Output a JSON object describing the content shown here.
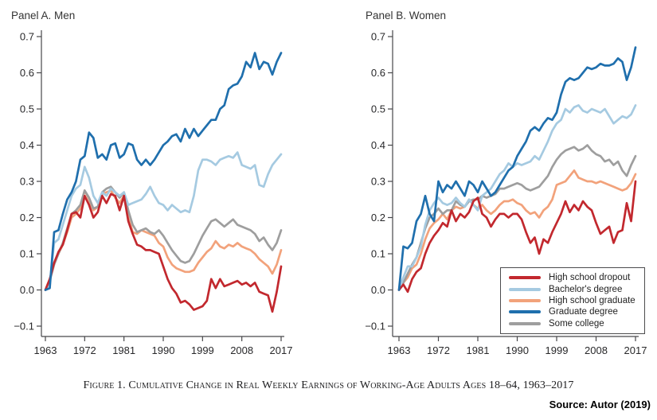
{
  "page": {
    "caption": "Figure 1. Cumulative Change in Real Weekly Earnings of Working-Age Adults Ages 18–64, 1963–2017",
    "source": "Source: Autor (2019)"
  },
  "colors": {
    "hs_dropout": "#c2282e",
    "bachelors": "#a5cae1",
    "hs_graduate": "#f2a27b",
    "graduate": "#1f6fad",
    "some_college": "#9e9e9e",
    "axis": "#47474a",
    "text": "#28282a"
  },
  "legend": {
    "entries": [
      {
        "label": "High school dropout",
        "series": "hs_dropout"
      },
      {
        "label": "Bachelor's degree",
        "series": "bachelors"
      },
      {
        "label": "High school graduate",
        "series": "hs_graduate"
      },
      {
        "label": "Graduate degree",
        "series": "graduate"
      },
      {
        "label": "Some college",
        "series": "some_college"
      }
    ]
  },
  "chart_data": [
    {
      "type": "line",
      "title": "Panel A. Men",
      "xlabel": "",
      "ylabel": "",
      "grid": false,
      "ylim": [
        -0.1,
        0.7
      ],
      "x_ticks": [
        1963,
        1972,
        1981,
        1990,
        1999,
        2008,
        2017
      ],
      "y_ticks": [
        -0.1,
        0.0,
        0.1,
        0.2,
        0.3,
        0.4,
        0.5,
        0.6,
        0.7
      ],
      "x": [
        1963,
        1964,
        1965,
        1966,
        1967,
        1968,
        1969,
        1970,
        1971,
        1972,
        1973,
        1974,
        1975,
        1976,
        1977,
        1978,
        1979,
        1980,
        1981,
        1982,
        1983,
        1984,
        1985,
        1986,
        1987,
        1988,
        1989,
        1990,
        1991,
        1992,
        1993,
        1994,
        1995,
        1996,
        1997,
        1998,
        1999,
        2000,
        2001,
        2002,
        2003,
        2004,
        2005,
        2006,
        2007,
        2008,
        2009,
        2010,
        2011,
        2012,
        2013,
        2014,
        2015,
        2016,
        2017
      ],
      "series": [
        {
          "key": "hs_dropout",
          "name": "High school dropout",
          "values": [
            0.0,
            0.03,
            0.075,
            0.105,
            0.125,
            0.165,
            0.21,
            0.215,
            0.2,
            0.26,
            0.235,
            0.2,
            0.215,
            0.26,
            0.24,
            0.265,
            0.26,
            0.22,
            0.26,
            0.19,
            0.155,
            0.125,
            0.12,
            0.11,
            0.11,
            0.105,
            0.1,
            0.065,
            0.03,
            0.005,
            -0.01,
            -0.035,
            -0.03,
            -0.04,
            -0.055,
            -0.05,
            -0.045,
            -0.03,
            0.03,
            0.005,
            0.03,
            0.01,
            0.015,
            0.02,
            0.025,
            0.015,
            0.02,
            0.01,
            0.02,
            -0.005,
            -0.01,
            -0.015,
            -0.06,
            -0.005,
            0.065
          ]
        },
        {
          "key": "bachelors",
          "name": "Bachelor's degree",
          "values": [
            0.0,
            0.02,
            0.13,
            0.14,
            0.18,
            0.22,
            0.26,
            0.28,
            0.29,
            0.34,
            0.31,
            0.26,
            0.24,
            0.27,
            0.26,
            0.28,
            0.27,
            0.26,
            0.27,
            0.235,
            0.24,
            0.245,
            0.25,
            0.265,
            0.285,
            0.26,
            0.24,
            0.235,
            0.22,
            0.235,
            0.225,
            0.215,
            0.22,
            0.215,
            0.26,
            0.33,
            0.36,
            0.36,
            0.355,
            0.345,
            0.36,
            0.365,
            0.37,
            0.365,
            0.38,
            0.345,
            0.34,
            0.335,
            0.345,
            0.29,
            0.285,
            0.32,
            0.345,
            0.36,
            0.375
          ]
        },
        {
          "key": "hs_graduate",
          "name": "High school graduate",
          "values": [
            0.0,
            0.03,
            0.075,
            0.1,
            0.125,
            0.16,
            0.2,
            0.21,
            0.225,
            0.275,
            0.25,
            0.22,
            0.23,
            0.265,
            0.27,
            0.275,
            0.255,
            0.24,
            0.26,
            0.2,
            0.16,
            0.155,
            0.165,
            0.16,
            0.155,
            0.15,
            0.13,
            0.12,
            0.09,
            0.07,
            0.06,
            0.055,
            0.05,
            0.05,
            0.055,
            0.075,
            0.09,
            0.105,
            0.115,
            0.135,
            0.12,
            0.115,
            0.125,
            0.12,
            0.13,
            0.12,
            0.115,
            0.11,
            0.1,
            0.085,
            0.075,
            0.065,
            0.045,
            0.07,
            0.11
          ]
        },
        {
          "key": "graduate",
          "name": "Graduate degree",
          "values": [
            0.0,
            0.005,
            0.16,
            0.165,
            0.21,
            0.25,
            0.27,
            0.3,
            0.36,
            0.37,
            0.435,
            0.42,
            0.365,
            0.375,
            0.36,
            0.4,
            0.405,
            0.365,
            0.375,
            0.405,
            0.4,
            0.36,
            0.345,
            0.36,
            0.345,
            0.36,
            0.38,
            0.4,
            0.41,
            0.425,
            0.43,
            0.41,
            0.445,
            0.42,
            0.445,
            0.425,
            0.44,
            0.455,
            0.47,
            0.47,
            0.5,
            0.51,
            0.555,
            0.565,
            0.57,
            0.59,
            0.63,
            0.615,
            0.655,
            0.61,
            0.63,
            0.625,
            0.595,
            0.63,
            0.655
          ]
        },
        {
          "key": "some_college",
          "name": "Some college",
          "values": [
            0.0,
            0.025,
            0.07,
            0.1,
            0.13,
            0.17,
            0.21,
            0.22,
            0.235,
            0.275,
            0.255,
            0.225,
            0.23,
            0.27,
            0.28,
            0.285,
            0.27,
            0.255,
            0.27,
            0.22,
            0.18,
            0.16,
            0.165,
            0.17,
            0.16,
            0.155,
            0.165,
            0.15,
            0.13,
            0.11,
            0.095,
            0.08,
            0.075,
            0.08,
            0.1,
            0.125,
            0.15,
            0.17,
            0.19,
            0.195,
            0.185,
            0.175,
            0.185,
            0.195,
            0.18,
            0.175,
            0.17,
            0.165,
            0.155,
            0.135,
            0.145,
            0.125,
            0.11,
            0.13,
            0.165
          ]
        }
      ]
    },
    {
      "type": "line",
      "title": "Panel B. Women",
      "xlabel": "",
      "ylabel": "",
      "grid": false,
      "ylim": [
        -0.1,
        0.7
      ],
      "x_ticks": [
        1963,
        1972,
        1981,
        1990,
        1999,
        2008,
        2017
      ],
      "y_ticks": [
        -0.1,
        0.0,
        0.1,
        0.2,
        0.3,
        0.4,
        0.5,
        0.6,
        0.7
      ],
      "x": [
        1963,
        1964,
        1965,
        1966,
        1967,
        1968,
        1969,
        1970,
        1971,
        1972,
        1973,
        1974,
        1975,
        1976,
        1977,
        1978,
        1979,
        1980,
        1981,
        1982,
        1983,
        1984,
        1985,
        1986,
        1987,
        1988,
        1989,
        1990,
        1991,
        1992,
        1993,
        1994,
        1995,
        1996,
        1997,
        1998,
        1999,
        2000,
        2001,
        2002,
        2003,
        2004,
        2005,
        2006,
        2007,
        2008,
        2009,
        2010,
        2011,
        2012,
        2013,
        2014,
        2015,
        2016,
        2017
      ],
      "series": [
        {
          "key": "hs_dropout",
          "name": "High school dropout",
          "values": [
            0.0,
            0.015,
            -0.005,
            0.03,
            0.05,
            0.06,
            0.1,
            0.13,
            0.15,
            0.165,
            0.185,
            0.175,
            0.22,
            0.19,
            0.21,
            0.2,
            0.215,
            0.245,
            0.255,
            0.21,
            0.2,
            0.175,
            0.195,
            0.21,
            0.21,
            0.2,
            0.21,
            0.21,
            0.195,
            0.16,
            0.13,
            0.145,
            0.1,
            0.14,
            0.13,
            0.16,
            0.185,
            0.21,
            0.245,
            0.215,
            0.235,
            0.22,
            0.245,
            0.23,
            0.22,
            0.185,
            0.155,
            0.165,
            0.175,
            0.13,
            0.16,
            0.165,
            0.24,
            0.19,
            0.3
          ]
        },
        {
          "key": "bachelors",
          "name": "Bachelor's degree",
          "values": [
            0.0,
            0.035,
            0.065,
            0.065,
            0.09,
            0.12,
            0.18,
            0.22,
            0.24,
            0.255,
            0.24,
            0.235,
            0.24,
            0.255,
            0.24,
            0.23,
            0.25,
            0.235,
            0.22,
            0.26,
            0.27,
            0.28,
            0.3,
            0.32,
            0.33,
            0.35,
            0.34,
            0.35,
            0.345,
            0.35,
            0.355,
            0.37,
            0.36,
            0.385,
            0.41,
            0.44,
            0.46,
            0.47,
            0.5,
            0.49,
            0.505,
            0.51,
            0.495,
            0.49,
            0.5,
            0.495,
            0.49,
            0.5,
            0.48,
            0.46,
            0.47,
            0.48,
            0.475,
            0.485,
            0.51
          ]
        },
        {
          "key": "hs_graduate",
          "name": "High school graduate",
          "values": [
            0.0,
            0.02,
            0.035,
            0.06,
            0.07,
            0.1,
            0.14,
            0.17,
            0.185,
            0.195,
            0.21,
            0.195,
            0.22,
            0.23,
            0.225,
            0.23,
            0.25,
            0.235,
            0.225,
            0.235,
            0.22,
            0.21,
            0.22,
            0.235,
            0.245,
            0.245,
            0.25,
            0.24,
            0.235,
            0.22,
            0.21,
            0.215,
            0.2,
            0.22,
            0.23,
            0.25,
            0.29,
            0.295,
            0.3,
            0.315,
            0.33,
            0.31,
            0.305,
            0.3,
            0.3,
            0.295,
            0.3,
            0.295,
            0.29,
            0.285,
            0.28,
            0.275,
            0.28,
            0.295,
            0.32
          ]
        },
        {
          "key": "graduate",
          "name": "Graduate degree",
          "values": [
            0.0,
            0.12,
            0.115,
            0.13,
            0.19,
            0.21,
            0.26,
            0.21,
            0.19,
            0.3,
            0.27,
            0.29,
            0.28,
            0.3,
            0.28,
            0.26,
            0.3,
            0.29,
            0.27,
            0.3,
            0.28,
            0.26,
            0.27,
            0.29,
            0.31,
            0.33,
            0.34,
            0.37,
            0.39,
            0.41,
            0.44,
            0.45,
            0.44,
            0.46,
            0.475,
            0.47,
            0.49,
            0.54,
            0.575,
            0.585,
            0.58,
            0.585,
            0.6,
            0.615,
            0.61,
            0.615,
            0.625,
            0.62,
            0.62,
            0.625,
            0.64,
            0.63,
            0.58,
            0.615,
            0.67
          ]
        },
        {
          "key": "some_college",
          "name": "Some college",
          "values": [
            0.0,
            0.02,
            0.045,
            0.07,
            0.09,
            0.13,
            0.17,
            0.2,
            0.21,
            0.225,
            0.21,
            0.22,
            0.22,
            0.245,
            0.235,
            0.23,
            0.245,
            0.25,
            0.25,
            0.26,
            0.255,
            0.26,
            0.265,
            0.28,
            0.28,
            0.285,
            0.29,
            0.295,
            0.29,
            0.28,
            0.275,
            0.28,
            0.285,
            0.3,
            0.315,
            0.34,
            0.36,
            0.375,
            0.385,
            0.39,
            0.395,
            0.385,
            0.39,
            0.4,
            0.385,
            0.375,
            0.37,
            0.355,
            0.36,
            0.345,
            0.355,
            0.33,
            0.315,
            0.345,
            0.37
          ]
        }
      ]
    }
  ]
}
